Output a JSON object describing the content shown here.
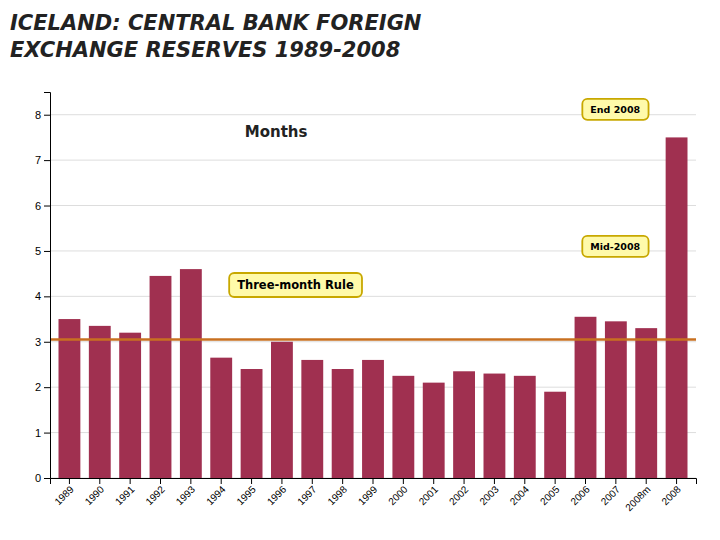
{
  "chart_data": {
    "type": "bar",
    "title": [
      "ICELAND: CENTRAL BANK FOREIGN",
      "EXCHANGE RESERVES 1989-2008"
    ],
    "ylabel": "Months",
    "categories": [
      "1989",
      "1990",
      "1991",
      "1992",
      "1993",
      "1994",
      "1995",
      "1996",
      "1997",
      "1998",
      "1999",
      "2000",
      "2001",
      "2002",
      "2003",
      "2004",
      "2005",
      "2006",
      "2007",
      "2008m",
      "2008"
    ],
    "values": [
      3.5,
      3.35,
      3.2,
      4.45,
      4.6,
      2.65,
      2.4,
      3.0,
      2.6,
      2.4,
      2.6,
      2.25,
      2.1,
      2.35,
      2.3,
      2.25,
      1.9,
      3.55,
      3.45,
      3.3,
      7.5
    ],
    "color": "#A03050",
    "reference_line": {
      "value": 3.05,
      "color": "#C87020"
    },
    "annotations": [
      "Three-month Rule",
      "End 2008",
      "Mid-2008"
    ],
    "ylim": [
      0,
      8.5
    ],
    "yticks": [
      0,
      1,
      2,
      3,
      4,
      5,
      6,
      7,
      8
    ],
    "grid": true
  }
}
